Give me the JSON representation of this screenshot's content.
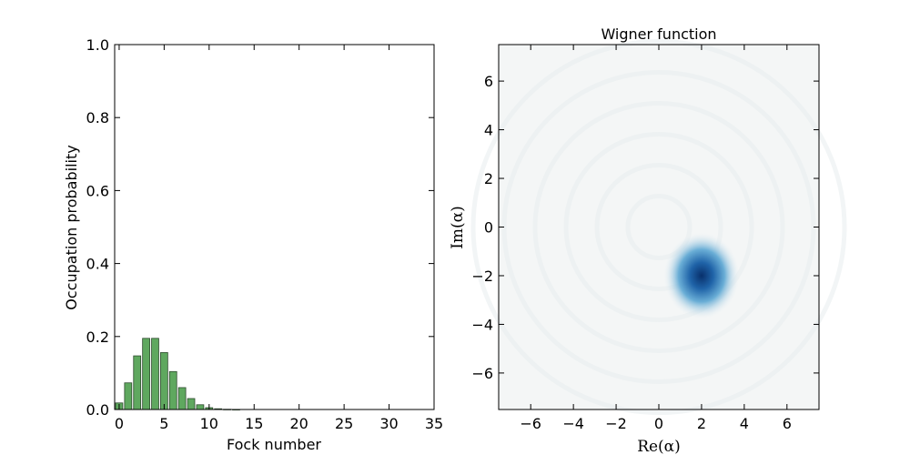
{
  "chart_data": [
    {
      "type": "bar",
      "title": "",
      "xlabel": "Fock number",
      "ylabel": "Occupation probability",
      "xlim": [
        -0.5,
        35
      ],
      "ylim": [
        0,
        1.0
      ],
      "xticks": [
        "0",
        "5",
        "10",
        "15",
        "20",
        "25",
        "30",
        "35"
      ],
      "yticks": [
        "0.0",
        "0.2",
        "0.4",
        "0.6",
        "0.8",
        "1.0"
      ],
      "bar_color": "#5fa85f",
      "x": [
        0,
        1,
        2,
        3,
        4,
        5,
        6,
        7,
        8,
        9,
        10,
        11,
        12,
        13
      ],
      "values": [
        0.018,
        0.073,
        0.147,
        0.195,
        0.195,
        0.156,
        0.104,
        0.06,
        0.03,
        0.013,
        0.005,
        0.002,
        0.0006,
        0.0002
      ],
      "grid": false
    },
    {
      "type": "heatmap",
      "title": "Wigner function",
      "xlabel": "Re(α)",
      "ylabel": "Im(α)",
      "xlim": [
        -7.5,
        7.5
      ],
      "ylim": [
        -7.5,
        7.5
      ],
      "xticks": [
        "−6",
        "−4",
        "−2",
        "0",
        "2",
        "4",
        "6"
      ],
      "yticks": [
        "−6",
        "−4",
        "−2",
        "0",
        "2",
        "4",
        "6"
      ],
      "peak": {
        "x": 2.0,
        "y": -2.0,
        "sigma": 0.6
      },
      "colormap": [
        "#f7fbff",
        "#6aaed6",
        "#08306b"
      ],
      "background_color": "#f4f6f6",
      "grid": false
    }
  ]
}
